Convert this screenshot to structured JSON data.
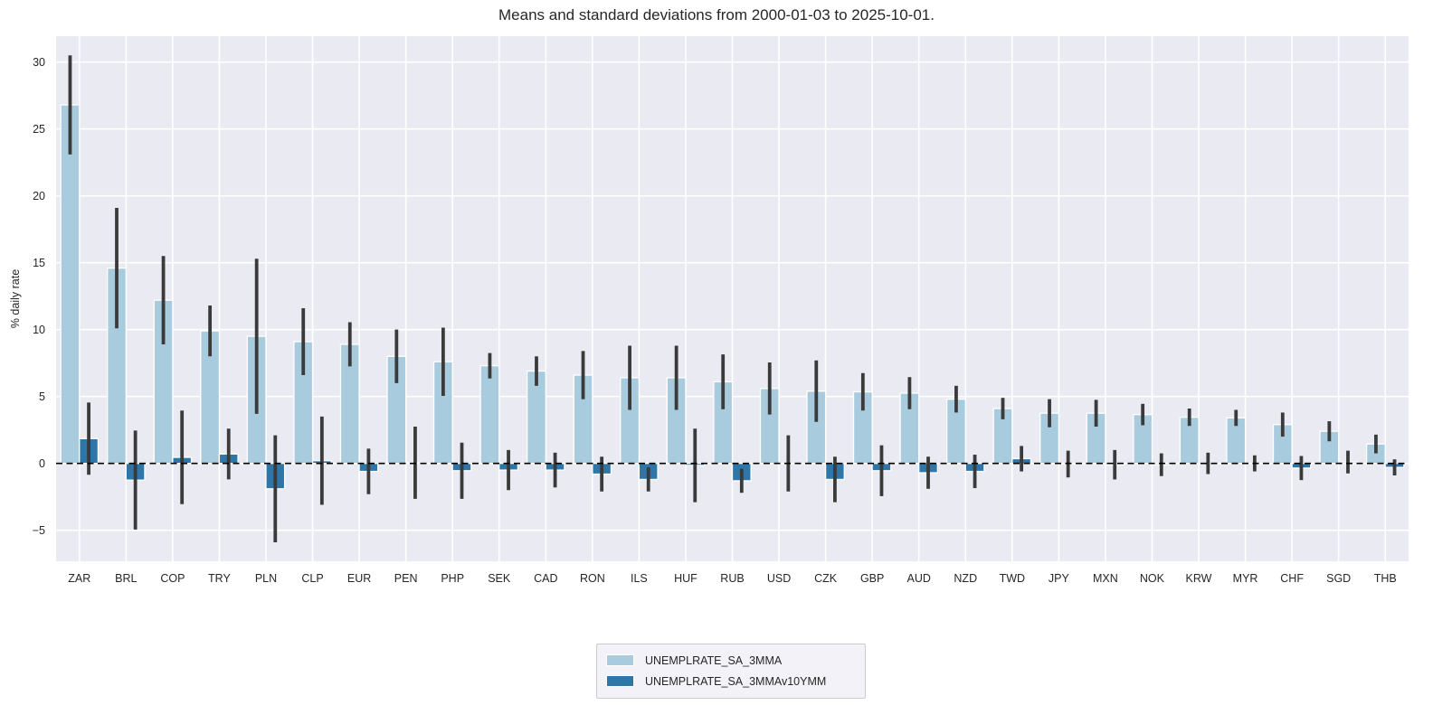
{
  "title": "Means and standard deviations from 2000-01-03 to 2025-10-01.",
  "ylabel": "% daily rate",
  "colors": {
    "plot_background": "#eaeaf2",
    "gridline": "#ffffff",
    "error_bar": "#3a3a3a",
    "zero_line": "#000000",
    "tick_text": "#262626",
    "series_light": "#a9cbde",
    "series_dark": "#2e75a8"
  },
  "legend": {
    "entries": [
      "UNEMPLRATE_SA_3MMA",
      "UNEMPLRATE_SA_3MMAv10YMM"
    ]
  },
  "chart_data": {
    "type": "bar",
    "title": "Means and standard deviations from 2000-01-03 to 2025-10-01.",
    "xlabel": "",
    "ylabel": "% daily rate",
    "ylim": [
      -7.32,
      31.94
    ],
    "yticks": [
      -5,
      0,
      5,
      10,
      15,
      20,
      25,
      30
    ],
    "grid": true,
    "zero_line_dashed": true,
    "legend_position": "bottom-center",
    "categories": [
      "ZAR",
      "BRL",
      "COP",
      "TRY",
      "PLN",
      "CLP",
      "EUR",
      "PEN",
      "PHP",
      "SEK",
      "CAD",
      "RON",
      "ILS",
      "HUF",
      "RUB",
      "USD",
      "CZK",
      "GBP",
      "AUD",
      "NZD",
      "TWD",
      "JPY",
      "MXN",
      "NOK",
      "KRW",
      "MYR",
      "CHF",
      "SGD",
      "THB"
    ],
    "series": [
      {
        "name": "UNEMPLRATE_SA_3MMA",
        "color": "#a9cbde",
        "values": [
          26.8,
          14.6,
          12.2,
          9.9,
          9.5,
          9.1,
          8.9,
          8.0,
          7.6,
          7.3,
          6.9,
          6.6,
          6.4,
          6.4,
          6.1,
          5.6,
          5.4,
          5.35,
          5.25,
          4.8,
          4.1,
          3.75,
          3.75,
          3.65,
          3.45,
          3.4,
          2.9,
          2.4,
          1.45
        ],
        "std": [
          3.7,
          4.5,
          3.3,
          1.9,
          5.8,
          2.5,
          1.65,
          2.0,
          2.55,
          0.95,
          1.1,
          1.8,
          2.4,
          2.4,
          2.05,
          1.95,
          2.3,
          1.4,
          1.2,
          1.0,
          0.8,
          1.05,
          1.0,
          0.8,
          0.65,
          0.6,
          0.9,
          0.75,
          0.7
        ]
      },
      {
        "name": "UNEMPLRATE_SA_3MMAv10YMM",
        "color": "#2e75a8",
        "values": [
          1.85,
          -1.25,
          0.45,
          0.7,
          -1.9,
          0.2,
          -0.6,
          0.05,
          -0.55,
          -0.5,
          -0.5,
          -0.8,
          -1.2,
          -0.15,
          -1.3,
          0.0,
          -1.2,
          -0.55,
          -0.7,
          -0.6,
          0.35,
          -0.05,
          -0.1,
          -0.1,
          0.0,
          0.0,
          -0.35,
          0.1,
          -0.3
        ],
        "std": [
          2.7,
          3.7,
          3.5,
          1.9,
          4.0,
          3.3,
          1.7,
          2.7,
          2.1,
          1.5,
          1.3,
          1.3,
          0.9,
          2.75,
          0.9,
          2.1,
          1.7,
          1.9,
          1.2,
          1.25,
          0.95,
          1.0,
          1.1,
          0.85,
          0.8,
          0.6,
          0.9,
          0.85,
          0.6
        ]
      }
    ]
  }
}
